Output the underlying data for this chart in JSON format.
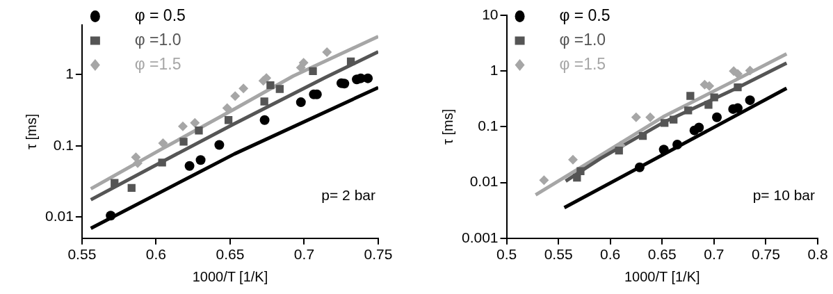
{
  "chart_data": [
    {
      "type": "scatter",
      "xlabel": "1000/T [1/K]",
      "ylabel": "τ [ms]",
      "log": "y",
      "legend": "top left",
      "grid": false,
      "xlim": [
        0.55,
        0.75
      ],
      "xticks": [
        0.55,
        0.6,
        0.65,
        0.7,
        0.75
      ],
      "ylim": [
        0.005,
        5
      ],
      "yticks": [
        0.01,
        0.1,
        1
      ],
      "annotations": [
        "p= 2 bar"
      ],
      "series": [
        {
          "name": "φ = 0.5",
          "type": "scatter",
          "marker": "circle",
          "color": "#000000",
          "x": [
            0.5694,
            0.6226,
            0.6301,
            0.6427,
            0.6733,
            0.6978,
            0.7065,
            0.7086,
            0.7251,
            0.7271,
            0.7355,
            0.7382,
            0.743
          ],
          "values": [
            0.0104,
            0.052,
            0.063,
            0.103,
            0.23,
            0.41,
            0.53,
            0.53,
            0.76,
            0.75,
            0.86,
            0.89,
            0.89
          ]
        },
        {
          "name": "φ =1.0",
          "type": "scatter",
          "marker": "square",
          "color": "#555555",
          "x": [
            0.572,
            0.5835,
            0.6041,
            0.6186,
            0.6289,
            0.6489,
            0.6731,
            0.6772,
            0.6835,
            0.7059,
            0.7315
          ],
          "values": [
            0.03,
            0.0255,
            0.058,
            0.114,
            0.164,
            0.23,
            0.42,
            0.71,
            0.63,
            1.12,
            1.54
          ]
        },
        {
          "name": "φ =1.5",
          "type": "scatter",
          "marker": "diamond",
          "color": "#a6a6a6",
          "x": [
            0.5864,
            0.5876,
            0.6047,
            0.6181,
            0.6262,
            0.648,
            0.6534,
            0.659,
            0.6724,
            0.6745,
            0.6978,
            0.6996,
            0.7154
          ],
          "values": [
            0.069,
            0.057,
            0.109,
            0.188,
            0.21,
            0.34,
            0.5,
            0.64,
            0.82,
            0.9,
            1.26,
            1.47,
            2.08
          ]
        },
        {
          "type": "line",
          "marker": "none",
          "color": "#000000",
          "x": [
            0.556,
            0.653,
            0.75
          ],
          "values": [
            0.0069,
            0.077,
            0.66
          ]
        },
        {
          "type": "line",
          "marker": "none",
          "color": "#555555",
          "x": [
            0.556,
            0.603,
            0.652,
            0.714,
            0.75
          ],
          "values": [
            0.0174,
            0.058,
            0.2,
            0.91,
            2.1
          ]
        },
        {
          "type": "line",
          "marker": "none",
          "color": "#a6a6a6",
          "x": [
            0.556,
            0.603,
            0.653,
            0.6925,
            0.75
          ],
          "values": [
            0.0248,
            0.088,
            0.33,
            0.955,
            3.45
          ]
        }
      ]
    },
    {
      "type": "scatter",
      "xlabel": "1000/T [1/K]",
      "ylabel": "τ [ms]",
      "log": "y",
      "legend": "top left",
      "grid": false,
      "xlim": [
        0.5,
        0.8
      ],
      "xticks": [
        0.5,
        0.55,
        0.6,
        0.65,
        0.7,
        0.75,
        0.8
      ],
      "ylim": [
        0.001,
        10
      ],
      "yticks": [
        0.001,
        0.01,
        0.1,
        1,
        10
      ],
      "annotations": [
        "p= 10 bar"
      ],
      "series": [
        {
          "name": "φ = 0.5",
          "type": "scatter",
          "marker": "circle",
          "color": "#000000",
          "x": [
            0.6283,
            0.6516,
            0.6646,
            0.6811,
            0.6855,
            0.7028,
            0.7184,
            0.7229,
            0.7347
          ],
          "values": [
            0.0187,
            0.039,
            0.048,
            0.086,
            0.097,
            0.148,
            0.208,
            0.216,
            0.3
          ]
        },
        {
          "name": "φ =1.0",
          "type": "scatter",
          "marker": "square",
          "color": "#555555",
          "x": [
            0.5679,
            0.5713,
            0.6084,
            0.6314,
            0.6523,
            0.661,
            0.6772,
            0.6751,
            0.6947,
            0.7002,
            0.7229
          ],
          "values": [
            0.0122,
            0.016,
            0.0375,
            0.0685,
            0.117,
            0.134,
            0.358,
            0.196,
            0.248,
            0.337,
            0.51
          ]
        },
        {
          "name": "φ =1.5",
          "type": "scatter",
          "marker": "diamond",
          "color": "#a6a6a6",
          "x": [
            0.5361,
            0.564,
            0.61,
            0.6249,
            0.6385,
            0.691,
            0.6955,
            0.719,
            0.7229,
            0.7347
          ],
          "values": [
            0.011,
            0.0257,
            0.046,
            0.148,
            0.148,
            0.57,
            0.54,
            1.0,
            0.89,
            1.02
          ]
        },
        {
          "type": "line",
          "marker": "none",
          "color": "#000000",
          "x": [
            0.5557,
            0.77
          ],
          "values": [
            0.00354,
            0.49
          ]
        },
        {
          "type": "line",
          "marker": "none",
          "color": "#555555",
          "x": [
            0.557,
            0.591,
            0.651,
            0.7216,
            0.77
          ],
          "values": [
            0.0106,
            0.0273,
            0.119,
            0.49,
            1.39
          ]
        },
        {
          "type": "line",
          "marker": "none",
          "color": "#a6a6a6",
          "x": [
            0.528,
            0.591,
            0.651,
            0.7216,
            0.77
          ],
          "values": [
            0.006,
            0.031,
            0.151,
            0.7,
            2.03
          ]
        }
      ]
    }
  ]
}
